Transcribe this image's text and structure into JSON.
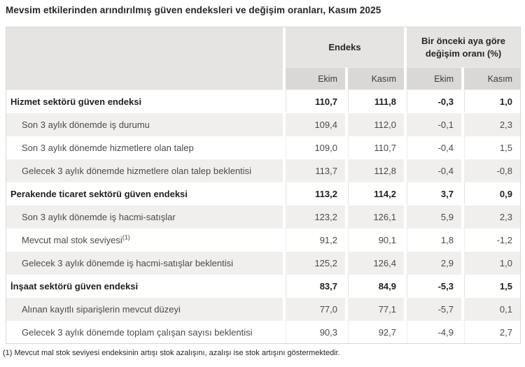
{
  "title": "Mevsim etkilerinden arındırılmış güven endeksleri ve değişim oranları, Kasım 2025",
  "table": {
    "group_headers": [
      {
        "label": "Endeks"
      },
      {
        "label": "Bir önceki aya göre değişim oranı (%)"
      }
    ],
    "sub_headers": [
      "Ekim",
      "Kasım",
      "Ekim",
      "Kasım"
    ],
    "rows": [
      {
        "label": "Hizmet sektörü güven endeksi",
        "bold": true,
        "values": [
          "110,7",
          "111,8",
          "-0,3",
          "1,0"
        ]
      },
      {
        "label": "Son 3 aylık dönemde iş durumu",
        "bold": false,
        "values": [
          "109,4",
          "112,0",
          "-0,1",
          "2,3"
        ]
      },
      {
        "label": "Son 3 aylık dönemde hizmetlere olan talep",
        "bold": false,
        "values": [
          "109,0",
          "110,7",
          "-0,4",
          "1,5"
        ]
      },
      {
        "label": "Gelecek 3 aylık dönemde hizmetlere olan talep beklentisi",
        "bold": false,
        "values": [
          "113,7",
          "112,8",
          "-0,4",
          "-0,8"
        ]
      },
      {
        "label": "Perakende ticaret sektörü güven endeksi",
        "bold": true,
        "values": [
          "113,2",
          "114,2",
          "3,7",
          "0,9"
        ]
      },
      {
        "label": "Son 3 aylık dönemde iş hacmi-satışlar",
        "bold": false,
        "values": [
          "123,2",
          "126,1",
          "5,9",
          "2,3"
        ]
      },
      {
        "label": "Mevcut mal stok seviyesi",
        "sup": "(1)",
        "bold": false,
        "values": [
          "91,2",
          "90,1",
          "1,8",
          "-1,2"
        ]
      },
      {
        "label": "Gelecek 3 aylık dönemde iş hacmi-satışlar beklentisi",
        "bold": false,
        "values": [
          "125,2",
          "126,4",
          "2,9",
          "1,0"
        ]
      },
      {
        "label": "İnşaat sektörü güven endeksi",
        "bold": true,
        "values": [
          "83,7",
          "84,9",
          "-5,3",
          "1,5"
        ]
      },
      {
        "label": "Alınan kayıtlı siparişlerin mevcut düzeyi",
        "bold": false,
        "values": [
          "77,0",
          "77,1",
          "-5,7",
          "0,1"
        ]
      },
      {
        "label": "Gelecek 3 aylık dönemde toplam çalışan sayısı beklentisi",
        "bold": false,
        "values": [
          "90,3",
          "92,7",
          "-4,9",
          "2,7"
        ]
      }
    ]
  },
  "footnote": "(1) Mevcut mal stok seviyesi endeksinin artışı stok azalışını, azalışı ise stok artışını göstermektedir.",
  "colors": {
    "header_bg": "#e5e4e3",
    "subheader_bg": "#d9d8d7",
    "stripe_bg": "#f0efee",
    "table_border": "#d9d8d7",
    "text_dark": "#262626",
    "text_gray": "#4a4a4a"
  }
}
